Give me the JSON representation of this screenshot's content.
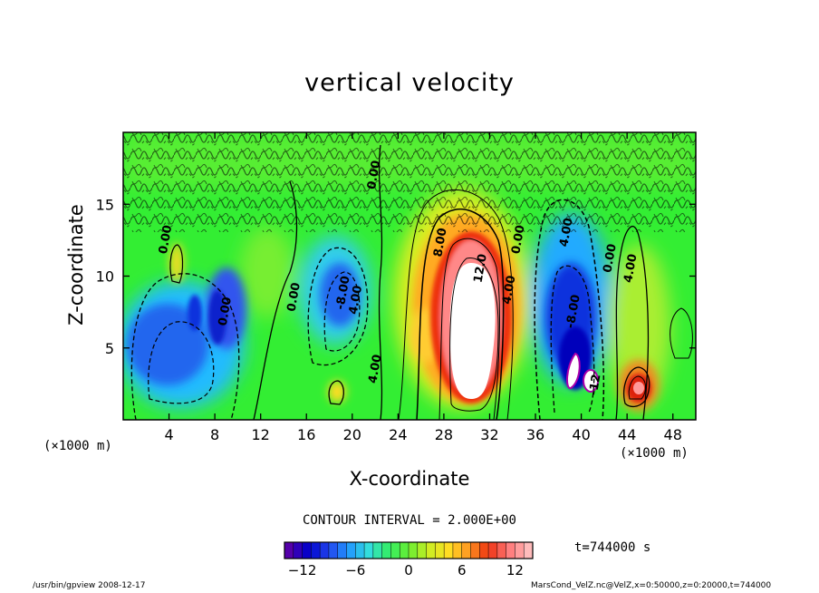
{
  "chart_data": {
    "type": "heatmap",
    "title": "vertical velocity",
    "xlabel": "X-coordinate",
    "ylabel": "Z-coordinate",
    "x_unit_left": "(×1000 m)",
    "x_unit_right": "(×1000 m)",
    "xlim": [
      0,
      50
    ],
    "ylim": [
      0,
      20
    ],
    "x_ticks": [
      "4",
      "8",
      "12",
      "16",
      "20",
      "24",
      "28",
      "32",
      "36",
      "40",
      "44",
      "48"
    ],
    "x_tick_values": [
      4,
      8,
      12,
      16,
      20,
      24,
      28,
      32,
      36,
      40,
      44,
      48
    ],
    "y_ticks": [
      "5",
      "10",
      "15"
    ],
    "y_tick_values": [
      5,
      10,
      15
    ],
    "contour_labels": [
      {
        "text": "0.00",
        "x": 4.0,
        "y": 12.5
      },
      {
        "text": "0.00",
        "x": 9.2,
        "y": 7.5
      },
      {
        "text": "0.00",
        "x": 15.2,
        "y": 8.5
      },
      {
        "text": "-8.00",
        "x": 19.5,
        "y": 8.8
      },
      {
        "text": "4.00",
        "x": 20.6,
        "y": 8.3
      },
      {
        "text": "0.00",
        "x": 22.2,
        "y": 17.0
      },
      {
        "text": "4.00",
        "x": 22.3,
        "y": 3.5
      },
      {
        "text": "8.00",
        "x": 28.0,
        "y": 12.3
      },
      {
        "text": "12.0",
        "x": 31.5,
        "y": 10.5
      },
      {
        "text": "4.00",
        "x": 34.0,
        "y": 9.0
      },
      {
        "text": "0.00",
        "x": 34.8,
        "y": 12.5
      },
      {
        "text": "4.00",
        "x": 39.0,
        "y": 13.0
      },
      {
        "text": "-8.00",
        "x": 39.6,
        "y": 7.5
      },
      {
        "text": "-12",
        "x": 41.5,
        "y": 2.4
      },
      {
        "text": "0.00",
        "x": 42.8,
        "y": 11.2
      },
      {
        "text": "4.00",
        "x": 44.6,
        "y": 10.5
      }
    ],
    "colorbar": {
      "ticks": [
        "−12",
        "−6",
        "0",
        "6",
        "12"
      ],
      "tick_values": [
        -12,
        -6,
        0,
        6,
        12
      ],
      "range": [
        -14,
        14
      ]
    },
    "grid": false
  },
  "contour_interval": "CONTOUR INTERVAL = 2.000E+00",
  "time": "t=744000  s",
  "footer_left": "/usr/bin/gpview   2008-12-17",
  "footer_right": "MarsCond_VelZ.nc@VelZ,x=0:50000,z=0:20000,t=744000",
  "colors": {
    "background_field": "#33ee33",
    "colormap": [
      "#5500aa",
      "#0000cc",
      "#2244ee",
      "#2299ff",
      "#33dddd",
      "#33ee66",
      "#66ee33",
      "#ccee22",
      "#ffdd22",
      "#ff9922",
      "#ee3311",
      "#ff7777",
      "#ffbbbb"
    ]
  }
}
